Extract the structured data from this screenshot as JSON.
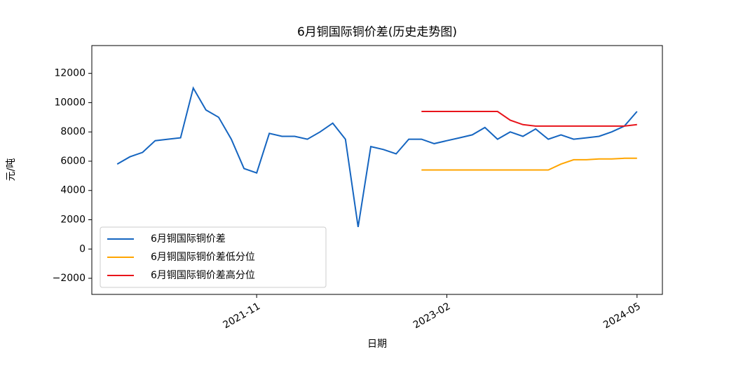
{
  "chart_data": {
    "type": "line",
    "title": "6月铜国际铜价差(历史走势图)",
    "x_label": "日期",
    "y_label": "元/吨",
    "x": [
      "2020-12",
      "2021-01",
      "2021-02",
      "2021-03",
      "2021-04",
      "2021-05",
      "2021-06",
      "2021-07",
      "2021-08",
      "2021-09",
      "2021-10",
      "2021-11",
      "2021-12",
      "2022-01",
      "2022-02",
      "2022-03",
      "2022-04",
      "2022-05",
      "2022-06",
      "2022-07",
      "2022-08",
      "2022-09",
      "2022-10",
      "2022-11",
      "2022-12",
      "2023-01",
      "2023-02",
      "2023-03",
      "2023-04",
      "2023-05",
      "2023-06",
      "2023-07",
      "2023-08",
      "2023-09",
      "2023-10",
      "2023-11",
      "2023-12",
      "2024-01",
      "2024-02",
      "2024-03",
      "2024-04",
      "2024-05"
    ],
    "series": [
      {
        "name": "6月铜国际铜价差",
        "color": "#1565c0",
        "values": [
          5800,
          6300,
          6600,
          7400,
          7500,
          7600,
          11000,
          9500,
          9000,
          7500,
          5500,
          5200,
          7900,
          7700,
          7700,
          7500,
          8000,
          8600,
          7500,
          1500,
          7000,
          6800,
          6500,
          7500,
          7500,
          7200,
          7400,
          7600,
          7800,
          8300,
          7500,
          8000,
          7700,
          8200,
          7500,
          7800,
          7500,
          7600,
          7700,
          8000,
          8400,
          9400
        ]
      },
      {
        "name": "6月铜国际铜价差低分位",
        "color": "#ffa500",
        "values": [
          null,
          null,
          null,
          null,
          null,
          null,
          null,
          null,
          null,
          null,
          null,
          null,
          null,
          null,
          null,
          null,
          null,
          null,
          null,
          null,
          null,
          null,
          null,
          null,
          5400,
          5400,
          5400,
          5400,
          5400,
          5400,
          5400,
          5400,
          5400,
          5400,
          5400,
          5800,
          6100,
          6100,
          6150,
          6150,
          6200,
          6200
        ]
      },
      {
        "name": "6月铜国际铜价差高分位",
        "color": "#e8141b",
        "values": [
          null,
          null,
          null,
          null,
          null,
          null,
          null,
          null,
          null,
          null,
          null,
          null,
          null,
          null,
          null,
          null,
          null,
          null,
          null,
          null,
          null,
          null,
          null,
          null,
          9400,
          9400,
          9400,
          9400,
          9400,
          9400,
          9400,
          8800,
          8500,
          8400,
          8400,
          8400,
          8400,
          8400,
          8400,
          8400,
          8400,
          8500
        ]
      }
    ],
    "xlim": [
      "2020-10",
      "2024-07"
    ],
    "xticks": [
      "2021-11",
      "2023-02",
      "2024-05"
    ],
    "ylim": [
      -3100,
      13900
    ],
    "yticks": [
      {
        "value": -2000,
        "label": "−2000"
      },
      0,
      2000,
      4000,
      6000,
      8000,
      10000,
      12000
    ],
    "legend": "lower left"
  }
}
